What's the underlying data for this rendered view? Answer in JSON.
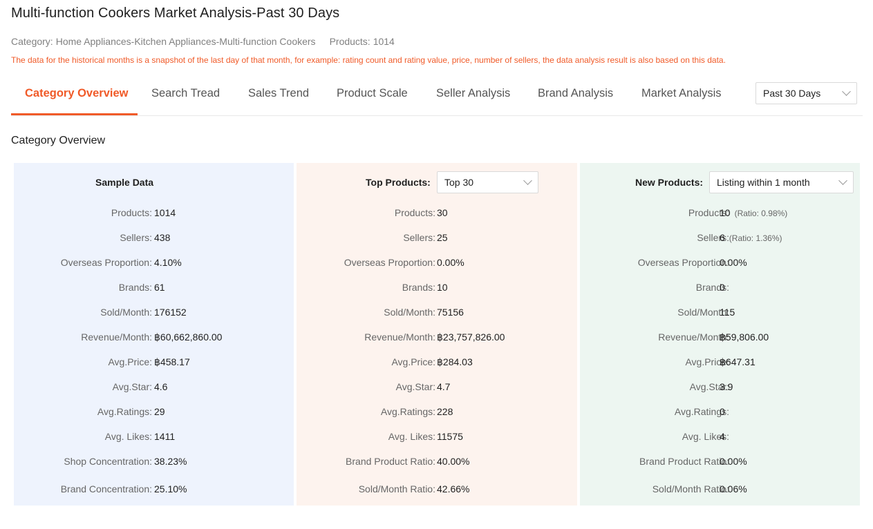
{
  "title": "Multi-function Cookers Market Analysis-Past 30 Days",
  "meta": {
    "category_label": "Category:",
    "category_value": "Home Appliances-Kitchen Appliances-Multi-function Cookers",
    "products_label": "Products:",
    "products_value": "1014"
  },
  "notice": "The data for the historical months is a snapshot of the last day of that month, for example: rating count and rating value, price, number of sellers, the data analysis result is also based on this data.",
  "tabs": [
    {
      "label": "Category Overview"
    },
    {
      "label": "Search Tread"
    },
    {
      "label": "Sales Trend"
    },
    {
      "label": "Product Scale"
    },
    {
      "label": "Seller Analysis"
    },
    {
      "label": "Brand Analysis"
    },
    {
      "label": "Market Analysis"
    }
  ],
  "period_select": "Past 30 Days",
  "section_title": "Category Overview",
  "sample": {
    "header": "Sample Data",
    "rows": [
      {
        "label": "Products:",
        "value": "1014"
      },
      {
        "label": "Sellers:",
        "value": "438"
      },
      {
        "label": "Overseas Proportion:",
        "value": "4.10%"
      },
      {
        "label": "Brands:",
        "value": "61"
      },
      {
        "label": "Sold/Month:",
        "value": "176152"
      },
      {
        "label": "Revenue/Month:",
        "value": "฿60,662,860.00"
      },
      {
        "label": "Avg.Price:",
        "value": "฿458.17"
      },
      {
        "label": "Avg.Star:",
        "value": "4.6"
      },
      {
        "label": "Avg.Ratings:",
        "value": "29"
      },
      {
        "label": "Avg. Likes:",
        "value": "1411"
      },
      {
        "label": "Shop Concentration:",
        "value": "38.23%"
      },
      {
        "label": "Brand Concentration:",
        "value": "25.10%"
      }
    ]
  },
  "top": {
    "header": "Top Products:",
    "select": "Top 30",
    "rows": [
      {
        "label": "Products:",
        "value": "30"
      },
      {
        "label": "Sellers:",
        "value": "25"
      },
      {
        "label": "Overseas Proportion:",
        "value": "0.00%"
      },
      {
        "label": "Brands:",
        "value": "10"
      },
      {
        "label": "Sold/Month:",
        "value": "75156"
      },
      {
        "label": "Revenue/Month:",
        "value": "฿23,757,826.00"
      },
      {
        "label": "Avg.Price:",
        "value": "฿284.03"
      },
      {
        "label": "Avg.Star:",
        "value": "4.7"
      },
      {
        "label": "Avg.Ratings:",
        "value": "228"
      },
      {
        "label": "Avg. Likes:",
        "value": "11575"
      },
      {
        "label": "Brand Product Ratio:",
        "value": "40.00%"
      },
      {
        "label": "Sold/Month Ratio:",
        "value": "42.66%"
      }
    ]
  },
  "new": {
    "header": "New Products:",
    "select": "Listing within 1 month",
    "rows": [
      {
        "label": "Products:",
        "value": "10",
        "ratio": "(Ratio: 0.98%)"
      },
      {
        "label": "Sellers:",
        "value": "6",
        "ratio": "(Ratio: 1.36%)"
      },
      {
        "label": "Overseas Proportion:",
        "value": "0.00%"
      },
      {
        "label": "Brands:",
        "value": "0"
      },
      {
        "label": "Sold/Month:",
        "value": "115"
      },
      {
        "label": "Revenue/Month:",
        "value": "฿59,806.00"
      },
      {
        "label": "Avg.Price:",
        "value": "฿647.31"
      },
      {
        "label": "Avg.Star:",
        "value": "3.9"
      },
      {
        "label": "Avg.Ratings:",
        "value": "0"
      },
      {
        "label": "Avg. Likes:",
        "value": "4"
      },
      {
        "label": "Brand Product Ratio:",
        "value": "0.00%"
      },
      {
        "label": "Sold/Month Ratio:",
        "value": "0.06%"
      }
    ]
  },
  "colors": {
    "accent": "#f05a28",
    "sample_bg": "#eef3fd",
    "top_bg": "#fdf3ee",
    "new_bg": "#edf6f1"
  }
}
